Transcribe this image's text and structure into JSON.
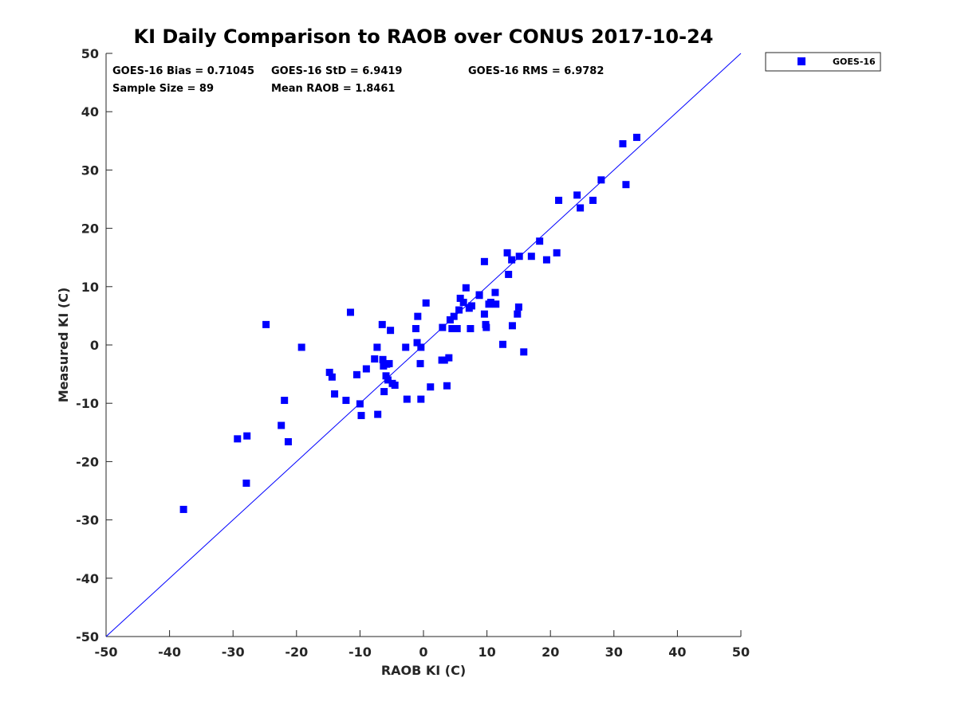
{
  "chart_data": {
    "type": "scatter",
    "title": "KI Daily Comparison to RAOB over CONUS 2017-10-24",
    "xlabel": "RAOB KI (C)",
    "ylabel": "Measured KI (C)",
    "xlim": [
      -50,
      50
    ],
    "ylim": [
      -50,
      50
    ],
    "xticks": [
      -50,
      -40,
      -30,
      -20,
      -10,
      0,
      10,
      20,
      30,
      40,
      50
    ],
    "yticks": [
      -50,
      -40,
      -30,
      -20,
      -10,
      0,
      10,
      20,
      30,
      40,
      50
    ],
    "grid": false,
    "legend": {
      "position": "outside-top-right",
      "entries": [
        "GOES-16"
      ]
    },
    "reference_line": {
      "name": "1:1 line",
      "x": [
        -50,
        50
      ],
      "y": [
        -50,
        50
      ],
      "color": "#0000ff"
    },
    "annotations": {
      "bias": "GOES-16 Bias = 0.71045",
      "std": "GOES-16 StD = 6.9419",
      "rms": "GOES-16 RMS = 6.9782",
      "sample_size": "Sample Size = 89",
      "mean_raob": "Mean RAOB = 1.8461"
    },
    "series": [
      {
        "name": "GOES-16",
        "color": "#0000ff",
        "marker": "square",
        "points": [
          [
            -37.8,
            -28.2
          ],
          [
            -29.3,
            -16.1
          ],
          [
            -27.8,
            -15.6
          ],
          [
            -27.9,
            -23.7
          ],
          [
            -24.8,
            3.5
          ],
          [
            -22.4,
            -13.8
          ],
          [
            -21.9,
            -9.5
          ],
          [
            -21.3,
            -16.6
          ],
          [
            -19.2,
            -0.4
          ],
          [
            -14.8,
            -4.7
          ],
          [
            -14.4,
            -5.5
          ],
          [
            -14.0,
            -8.4
          ],
          [
            -12.2,
            -9.5
          ],
          [
            -11.5,
            5.6
          ],
          [
            -10.5,
            -5.1
          ],
          [
            -10.0,
            -10.1
          ],
          [
            -9.8,
            -12.1
          ],
          [
            -9.0,
            -4.1
          ],
          [
            -7.7,
            -2.4
          ],
          [
            -7.3,
            -0.4
          ],
          [
            -7.2,
            -11.9
          ],
          [
            -6.5,
            3.5
          ],
          [
            -6.4,
            -2.5
          ],
          [
            -6.3,
            -3.6
          ],
          [
            -6.2,
            -8.0
          ],
          [
            -5.9,
            -5.3
          ],
          [
            -5.8,
            -3.3
          ],
          [
            -5.6,
            -6.0
          ],
          [
            -5.4,
            -3.2
          ],
          [
            -5.2,
            2.5
          ],
          [
            -4.9,
            -6.6
          ],
          [
            -4.5,
            -6.9
          ],
          [
            -2.8,
            -0.4
          ],
          [
            -2.6,
            -9.3
          ],
          [
            -1.2,
            2.8
          ],
          [
            -1.0,
            0.4
          ],
          [
            -0.9,
            4.9
          ],
          [
            -0.5,
            -3.2
          ],
          [
            -0.4,
            -9.3
          ],
          [
            -0.4,
            -0.4
          ],
          [
            0.4,
            7.2
          ],
          [
            1.1,
            -7.2
          ],
          [
            2.9,
            -2.6
          ],
          [
            3.0,
            3.0
          ],
          [
            3.3,
            -2.6
          ],
          [
            3.7,
            -7.0
          ],
          [
            4.0,
            -2.2
          ],
          [
            4.2,
            4.3
          ],
          [
            4.5,
            2.8
          ],
          [
            4.8,
            4.9
          ],
          [
            5.3,
            2.8
          ],
          [
            5.6,
            6.0
          ],
          [
            5.8,
            8.0
          ],
          [
            6.3,
            7.3
          ],
          [
            6.7,
            9.8
          ],
          [
            7.2,
            6.3
          ],
          [
            7.4,
            2.8
          ],
          [
            7.6,
            6.7
          ],
          [
            8.8,
            8.6
          ],
          [
            9.6,
            5.3
          ],
          [
            9.6,
            14.3
          ],
          [
            9.8,
            3.5
          ],
          [
            9.9,
            3.0
          ],
          [
            10.3,
            7.0
          ],
          [
            10.6,
            7.3
          ],
          [
            11.3,
            9.0
          ],
          [
            11.4,
            7.0
          ],
          [
            12.5,
            0.1
          ],
          [
            13.2,
            15.8
          ],
          [
            13.4,
            12.1
          ],
          [
            13.9,
            14.6
          ],
          [
            14.0,
            3.3
          ],
          [
            14.8,
            5.3
          ],
          [
            15.0,
            6.5
          ],
          [
            15.1,
            15.2
          ],
          [
            15.8,
            -1.2
          ],
          [
            17.0,
            15.2
          ],
          [
            18.3,
            17.8
          ],
          [
            19.4,
            14.6
          ],
          [
            21.0,
            15.8
          ],
          [
            21.3,
            24.8
          ],
          [
            24.2,
            25.7
          ],
          [
            24.7,
            23.5
          ],
          [
            26.7,
            24.8
          ],
          [
            28.0,
            28.3
          ],
          [
            31.4,
            34.5
          ],
          [
            31.9,
            27.5
          ],
          [
            33.6,
            35.6
          ],
          [
            8.8,
            8.5
          ]
        ]
      }
    ]
  }
}
